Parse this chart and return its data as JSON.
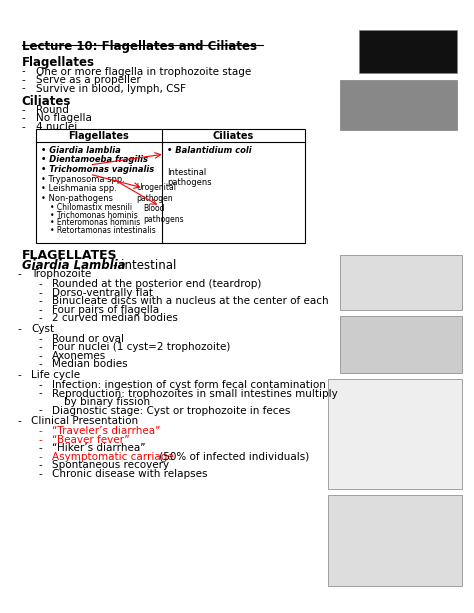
{
  "title": "Lecture 10: Flagellates and Ciliates",
  "background_color": "#ffffff",
  "text_color": "#000000",
  "red_color": "#cc0000",
  "flagellates_heading": "Flagellates",
  "ciliates_heading": "Ciliates",
  "flagellates_bullets": [
    "One or more flagella in trophozoite stage",
    "Serve as a propeller",
    "Survive in blood, lymph, CSF"
  ],
  "ciliates_bullets": [
    "Round",
    "No flagella",
    "4 nuclei"
  ],
  "table_header_left": "Flagellates",
  "table_header_right": "Ciliates",
  "table_flag_bold_italic": [
    "Giardia lamblia",
    "Dientamoeba fragilis",
    "Trichomonas vaginalis"
  ],
  "table_flag_normal": [
    "Trypanosoma spp.",
    "Leishmania spp."
  ],
  "table_non_path": [
    "Chilomastix mesnili",
    "Trichomonas hominis",
    "Enteromonas hominis",
    "Retortamonas intestinalis"
  ],
  "table_ciliates": [
    "Balantidium coli"
  ],
  "section2_heading": "FLAGELLATES",
  "giardia_italic": "Giardia Lamblia",
  "giardia_suffix": "- intestinal",
  "tropho_items": [
    "Rounded at the posterior end (teardrop)",
    "Dorso-ventrally flat",
    "Binucleate discs with a nucleus at the center of each",
    "Four pairs of flagella",
    "2 curved median bodies"
  ],
  "cyst_items": [
    "Round or oval",
    "Four nuclei (1 cyst=2 trophozoite)",
    "Axonemes",
    "Median bodies"
  ],
  "lifecycle_items": [
    "Infection: ingestion of cyst form fecal contamination",
    "Reproduction: trophozoites in small intestines multiply",
    "by binary fission",
    "Diagnostic stage: Cyst or trophozoite in feces"
  ],
  "clinical_red": [
    "“Traveler’s diarrhea”",
    "“Beaver fever”"
  ],
  "clinical_black": [
    "“Hiker’s diarrhea”",
    "Spontaneous recovery",
    "Chronic disease with relapses"
  ],
  "clinical_mixed_red": "Asymptomatic carriage",
  "clinical_mixed_black": " (50% of infected individuals)"
}
